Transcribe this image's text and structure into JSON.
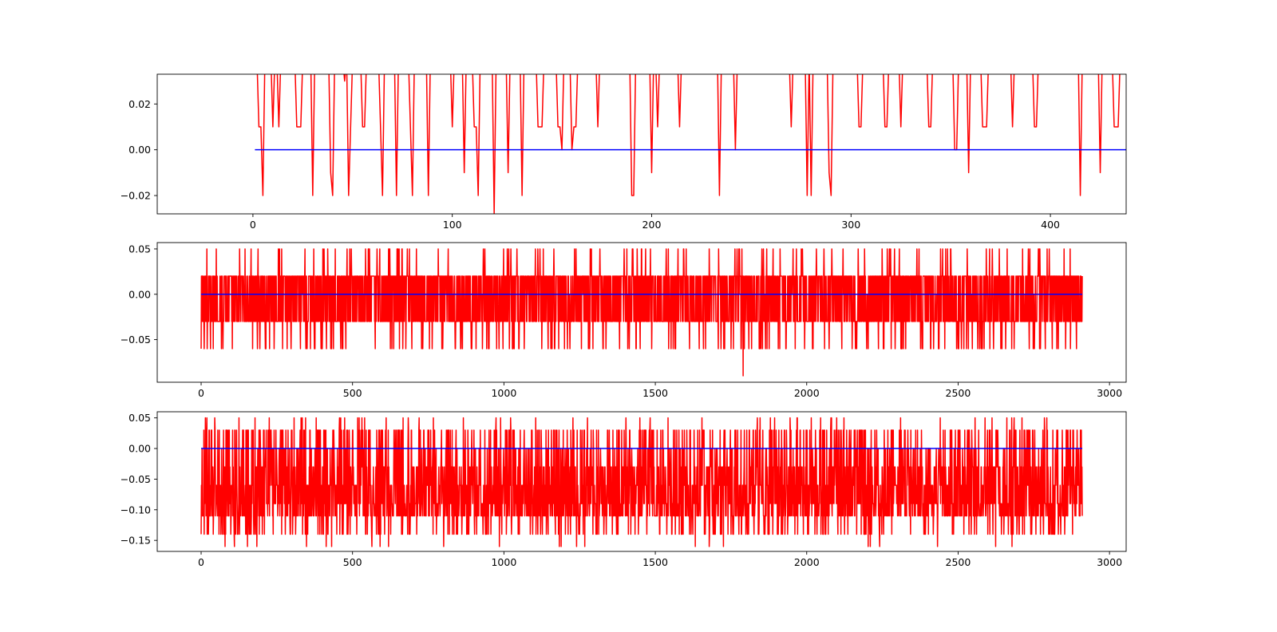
{
  "chart_data": [
    {
      "type": "line",
      "title": "",
      "xlabel": "",
      "ylabel": "",
      "xlim": [
        -48,
        438
      ],
      "ylim": [
        -0.028,
        0.033
      ],
      "xticks": [
        0,
        100,
        200,
        300,
        400
      ],
      "xtick_labels": [
        "0",
        "100",
        "200",
        "300",
        "400"
      ],
      "yticks": [
        -0.02,
        0.0,
        0.02
      ],
      "ytick_labels": [
        "−0.02",
        "0.00",
        "0.02"
      ],
      "grid": false,
      "series": [
        {
          "color": "#ff0000",
          "x_start": 1,
          "values": [
            0.04,
            0.04,
            0.01,
            0.01,
            -0.02,
            0.04,
            0.04,
            0.04,
            0.04,
            0.01,
            0.04,
            0.04,
            0.01,
            0.04,
            0.04,
            0.04,
            0.04,
            0.04,
            0.04,
            0.04,
            0.04,
            0.01,
            0.01,
            0.01,
            0.04,
            0.04,
            0.04,
            0.04,
            0.04,
            -0.02,
            0.04,
            0.04,
            0.04,
            0.04,
            0.04,
            0.04,
            0.04,
            0.04,
            -0.01,
            -0.02,
            0.04,
            0.04,
            0.04,
            0.04,
            0.04,
            0.03,
            0.04,
            -0.02,
            0.01,
            0.04,
            0.04,
            0.04,
            0.04,
            0.04,
            0.01,
            0.01,
            0.04,
            0.04,
            0.04,
            0.04,
            0.04,
            0.04,
            0.04,
            0.01,
            -0.02,
            0.04,
            0.04,
            0.04,
            0.04,
            0.04,
            0.04,
            -0.02,
            0.04,
            0.04,
            0.04,
            0.04,
            0.04,
            0.04,
            0.01,
            -0.02,
            0.04,
            0.04,
            0.04,
            0.04,
            0.04,
            0.04,
            0.04,
            -0.02,
            0.04,
            0.04,
            0.04,
            0.04,
            0.04,
            0.04,
            0.04,
            0.04,
            0.04,
            0.04,
            0.04,
            0.01,
            0.04,
            0.04,
            0.04,
            0.04,
            0.04,
            -0.01,
            0.04,
            0.04,
            0.04,
            0.04,
            0.01,
            0.01,
            -0.02,
            0.04,
            0.04,
            0.04,
            0.04,
            0.04,
            0.04,
            0.04,
            -0.028,
            0.04,
            0.04,
            0.04,
            0.04,
            0.04,
            0.04,
            -0.01,
            0.04,
            0.04,
            0.04,
            0.04,
            0.04,
            0.04,
            -0.02,
            0.04,
            0.04,
            0.04,
            0.04,
            0.04,
            0.04,
            0.04,
            0.01,
            0.01,
            0.01,
            0.04,
            0.04,
            0.04,
            0.04,
            0.04,
            0.04,
            0.04,
            0.01,
            0.01,
            0.0,
            0.04,
            0.04,
            0.04,
            0.04,
            0.0,
            0.01,
            0.01,
            0.04,
            0.04,
            0.04,
            0.04,
            0.04,
            0.04,
            0.04,
            0.04,
            0.04,
            0.04,
            0.01,
            0.04,
            0.04,
            0.04,
            0.04,
            0.04,
            0.04,
            0.04,
            0.04,
            0.04,
            0.04,
            0.04,
            0.04,
            0.04,
            0.04,
            0.04,
            0.04,
            -0.02,
            -0.02,
            0.04,
            0.04,
            0.04,
            0.04,
            0.04,
            0.04,
            0.04,
            0.04,
            -0.01,
            0.04,
            0.04,
            0.01,
            0.04,
            0.04,
            0.04,
            0.04,
            0.04,
            0.04,
            0.04,
            0.04,
            0.04,
            0.04,
            0.01,
            0.04,
            0.04,
            0.04,
            0.04,
            0.04,
            0.04,
            0.04,
            0.04,
            0.04,
            0.04,
            0.04,
            0.04,
            0.04,
            0.04,
            0.04,
            0.04,
            0.04,
            0.04,
            0.04,
            -0.02,
            0.04,
            0.04,
            0.04,
            0.04,
            0.04,
            0.04,
            0.04,
            0.0,
            0.04,
            0.04,
            0.04,
            0.04,
            0.04,
            0.04,
            0.04,
            0.04,
            0.04,
            0.04,
            0.04,
            0.04,
            0.04,
            0.04,
            0.04,
            0.04,
            0.04,
            0.04,
            0.04,
            0.04,
            0.04,
            0.04,
            0.04,
            0.04,
            0.04,
            0.04,
            0.04,
            0.01,
            0.04,
            0.04,
            0.04,
            0.04,
            0.04,
            0.04,
            0.04,
            -0.02,
            0.04,
            -0.02,
            0.04,
            0.04,
            0.04,
            0.04,
            0.04,
            0.04,
            0.04,
            0.04,
            -0.01,
            -0.02,
            0.04,
            0.04,
            0.04,
            0.04,
            0.04,
            0.04,
            0.04,
            0.04,
            0.04,
            0.04,
            0.04,
            0.04,
            0.04,
            0.01,
            0.01,
            0.04,
            0.04,
            0.04,
            0.04,
            0.04,
            0.04,
            0.04,
            0.04,
            0.04,
            0.04,
            0.04,
            0.01,
            0.01,
            0.04,
            0.04,
            0.04,
            0.04,
            0.04,
            0.04,
            0.01,
            0.04,
            0.04,
            0.04,
            0.04,
            0.04,
            0.04,
            0.04,
            0.04,
            0.04,
            0.04,
            0.04,
            0.04,
            0.04,
            0.01,
            0.01,
            0.04,
            0.04,
            0.04,
            0.04,
            0.04,
            0.04,
            0.04,
            0.04,
            0.04,
            0.04,
            0.04,
            0.0,
            0.0,
            0.04,
            0.04,
            0.04,
            0.04,
            0.04,
            -0.01,
            0.04,
            0.04,
            0.04,
            0.04,
            0.04,
            0.04,
            0.01,
            0.01,
            0.01,
            0.04,
            0.04,
            0.04,
            0.04,
            0.04,
            0.04,
            0.04,
            0.04,
            0.04,
            0.04,
            0.04,
            0.04,
            0.01,
            0.04,
            0.04,
            0.04,
            0.04,
            0.04,
            0.04,
            0.04,
            0.04,
            0.04,
            0.04,
            0.01,
            0.01,
            0.04,
            0.04,
            0.04,
            0.04,
            0.04,
            0.04,
            0.04,
            0.04,
            0.04,
            0.04,
            0.04,
            0.04,
            0.04,
            0.04,
            0.04,
            0.04,
            0.04,
            0.04,
            0.04,
            0.04,
            0.04,
            -0.02,
            0.04,
            0.04,
            0.04,
            0.04,
            0.04,
            0.04,
            0.04,
            0.04,
            0.04,
            -0.01,
            0.04,
            0.04,
            0.04,
            0.04,
            0.04,
            0.04,
            0.01,
            0.01,
            0.01,
            0.04,
            0.04,
            0.04,
            0.04,
            0.04,
            0.04,
            0.04,
            0.04,
            0.04,
            0.04,
            0.01,
            0.04,
            0.04
          ]
        },
        {
          "color": "#0000ff",
          "x": [
            1,
            438
          ],
          "values": [
            0.0,
            0.0
          ]
        }
      ]
    },
    {
      "type": "line",
      "title": "",
      "xlabel": "",
      "ylabel": "",
      "xlim": [
        -145,
        3055
      ],
      "ylim": [
        -0.097,
        0.057
      ],
      "xticks": [
        0,
        500,
        1000,
        1500,
        2000,
        2500,
        3000
      ],
      "xtick_labels": [
        "0",
        "500",
        "1000",
        "1500",
        "2000",
        "2500",
        "3000"
      ],
      "yticks": [
        -0.05,
        0.0,
        0.05
      ],
      "ytick_labels": [
        "−0.05",
        "0.00",
        "0.05"
      ],
      "grid": false,
      "series": [
        {
          "color": "#ff0000",
          "x_range": [
            0,
            2910
          ],
          "n_points": 2911,
          "value_levels": [
            -0.09,
            -0.06,
            -0.03,
            0.0,
            0.02,
            0.05
          ],
          "level_weights": [
            0.002,
            0.06,
            0.4,
            0.04,
            0.46,
            0.038
          ],
          "min_value": -0.09,
          "min_at_x": 1790
        },
        {
          "color": "#0000ff",
          "x": [
            0,
            2910
          ],
          "values": [
            0.0,
            0.0
          ]
        }
      ]
    },
    {
      "type": "line",
      "title": "",
      "xlabel": "",
      "ylabel": "",
      "xlim": [
        -145,
        3055
      ],
      "ylim": [
        -0.168,
        0.06
      ],
      "xticks": [
        0,
        500,
        1000,
        1500,
        2000,
        2500,
        3000
      ],
      "xtick_labels": [
        "0",
        "500",
        "1000",
        "1500",
        "2000",
        "2500",
        "3000"
      ],
      "yticks": [
        -0.15,
        -0.1,
        -0.05,
        0.0,
        0.05
      ],
      "ytick_labels": [
        "−0.15",
        "−0.10",
        "−0.05",
        "0.00",
        "0.05"
      ],
      "grid": false,
      "series": [
        {
          "color": "#ff0000",
          "x_range": [
            0,
            2910
          ],
          "n_points": 2911,
          "value_levels": [
            -0.16,
            -0.14,
            -0.11,
            -0.09,
            -0.06,
            -0.03,
            0.0,
            0.03,
            0.05
          ],
          "level_weights": [
            0.01,
            0.09,
            0.22,
            0.17,
            0.17,
            0.15,
            0.06,
            0.11,
            0.02
          ]
        },
        {
          "color": "#0000ff",
          "x": [
            0,
            2910
          ],
          "values": [
            0.0,
            0.0
          ]
        }
      ]
    }
  ]
}
